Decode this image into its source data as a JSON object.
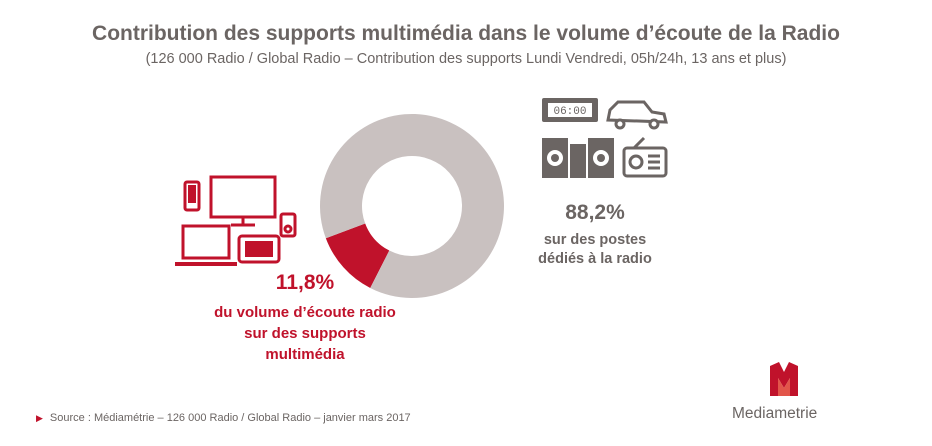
{
  "title": "Contribution des supports multimédia dans le volume d’écoute de la Radio",
  "subtitle": "(126 000 Radio / Global Radio – Contribution des supports Lundi Vendredi, 05h/24h, 13 ans et plus)",
  "chart_data": {
    "type": "pie",
    "variant": "donut",
    "slices": [
      {
        "label": "du volume d’écoute radio sur des supports multimédia",
        "value": 11.8,
        "value_label": "11,8%",
        "color": "#c0122b"
      },
      {
        "label": "sur des postes dédiés à la radio",
        "value": 88.2,
        "value_label": "88,2%",
        "color": "#c9c1c0"
      }
    ]
  },
  "labels": {
    "multimedia_pct": "11,8%",
    "multimedia_desc": [
      "du volume d’écoute radio",
      "sur des supports",
      "multimédia"
    ],
    "radio_pct": "88,2%",
    "radio_desc": [
      "sur des postes",
      "dédiés à la radio"
    ]
  },
  "icons": {
    "multimedia": [
      "smartphone-icon",
      "monitor-icon",
      "mp3-player-icon",
      "laptop-icon",
      "tablet-icon"
    ],
    "radio": [
      "alarm-clock-radio-icon",
      "car-icon",
      "hifi-system-icon",
      "radio-set-icon"
    ],
    "clock_display": "06:00"
  },
  "footer": {
    "source": "Source : Médiamétrie –   126 000 Radio / Global Radio – janvier mars 2017"
  },
  "logo": {
    "text": "Mediametrie",
    "mark": "M"
  },
  "colors": {
    "accent": "#c0122b",
    "grey": "#6b6563",
    "ring_grey": "#c9c1c0"
  }
}
